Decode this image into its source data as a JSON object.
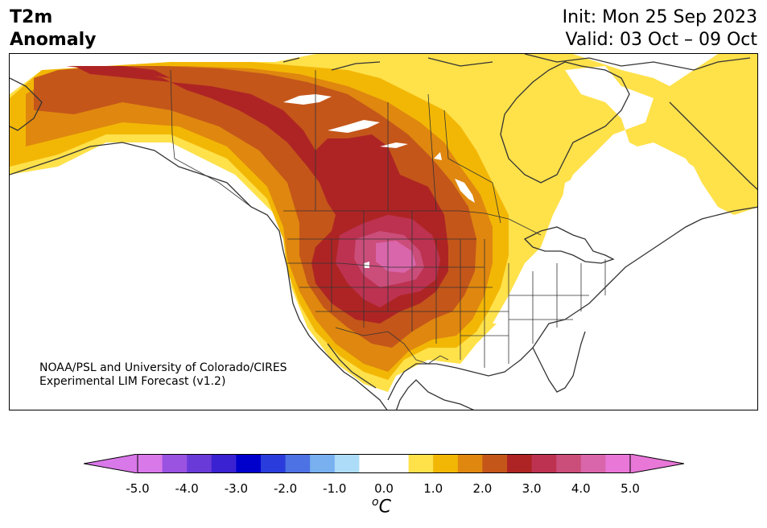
{
  "header": {
    "variable": "T2m",
    "quantity": "Anomaly",
    "init": "Init: Mon 25 Sep 2023",
    "valid": "Valid: 03 Oct – 09 Oct"
  },
  "credit": {
    "line1": "NOAA/PSL and University of Colorado/CIRES",
    "line2": "Experimental LIM Forecast (v1.2)"
  },
  "colorbar": {
    "ticks": [
      "-5.0",
      "-4.0",
      "-3.0",
      "-2.0",
      "-1.0",
      "0.0",
      "1.0",
      "2.0",
      "3.0",
      "4.0",
      "5.0"
    ],
    "unit_sup": "o",
    "unit": "C",
    "range": [
      -5.0,
      5.0
    ],
    "step": 0.5,
    "extend": "both",
    "colors": [
      "#d978e8",
      "#9a52e0",
      "#6a3ad8",
      "#3a22d2",
      "#0000cd",
      "#2a3ddc",
      "#4d72e4",
      "#78b0f0",
      "#addcf8",
      "#ffffff",
      "#ffffff",
      "#ffe14a",
      "#f2b705",
      "#df870f",
      "#c4561a",
      "#ae2424",
      "#bc3250",
      "#cb4d7a",
      "#d965aa",
      "#e877d8"
    ],
    "under_color": "#d978e8",
    "over_color": "#e877d8"
  },
  "map": {
    "region": "North America",
    "land_outline_color": "#333333",
    "ocean_color": "#ffffff"
  }
}
